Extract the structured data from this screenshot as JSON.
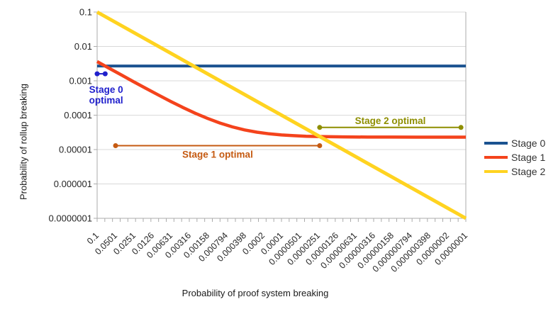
{
  "chart_data": {
    "type": "line",
    "title": "",
    "xlabel": "Probability of proof system breaking",
    "ylabel": "Probability of rollup breaking",
    "x_axis": {
      "scale": "log",
      "max": 0.1,
      "min": 1e-07,
      "tick_labels": [
        "0.1",
        "0.0501",
        "0.0251",
        "0.0126",
        "0.00631",
        "0.00316",
        "0.00158",
        "0.000794",
        "0.000398",
        "0.0002",
        "0.0001",
        "0.0000501",
        "0.0000251",
        "0.0000126",
        "0.00000631",
        "0.00000316",
        "0.00000158",
        "0.000000794",
        "0.000000398",
        "0.0000002",
        "0.0000001"
      ]
    },
    "y_axis": {
      "scale": "log",
      "max": 0.1,
      "min": 1e-07,
      "tick_labels": [
        "0.1",
        "0.01",
        "0.001",
        "0.0001",
        "0.00001",
        "0.000001",
        "0.0000001"
      ]
    },
    "series": [
      {
        "name": "Stage 0",
        "color": "#1B5390",
        "points": {
          "x": [
            0.1,
            1e-07
          ],
          "y": [
            0.0027,
            0.0027
          ]
        }
      },
      {
        "name": "Stage 1",
        "color": "#F4431C",
        "points": {
          "x": [
            0.1,
            0.0631,
            0.0398,
            0.0251,
            0.0158,
            0.01,
            0.00631,
            0.00398,
            0.00251,
            0.00158,
            0.001,
            0.000631,
            0.000398,
            0.000251,
            0.000158,
            0.0001,
            6.31e-05,
            3.98e-05,
            2.51e-05,
            1.58e-05,
            1e-05,
            3.98e-06,
            1.58e-06,
            6.3e-07,
            2.5e-07,
            1e-07
          ],
          "y": [
            0.00362,
            0.0023,
            0.00146,
            0.000927,
            0.000592,
            0.000383,
            0.00025,
            0.000166,
            0.000113,
            8e-05,
            5.9e-05,
            4.57e-05,
            3.73e-05,
            3.2e-05,
            2.87e-05,
            2.66e-05,
            2.53e-05,
            2.44e-05,
            2.39e-05,
            2.36e-05,
            2.34e-05,
            2.31e-05,
            2.31e-05,
            2.3e-05,
            2.3e-05,
            2.3e-05
          ]
        }
      },
      {
        "name": "Stage 2",
        "color": "#FFD320",
        "points": {
          "x": [
            0.1,
            1e-07
          ],
          "y": [
            0.1,
            1e-07
          ]
        }
      }
    ],
    "annotations": [
      {
        "label_lines": [
          "Stage 0",
          "optimal"
        ],
        "color": "#2020CC",
        "y": 0.0016,
        "x_start": 0.1,
        "x_end": 0.074
      },
      {
        "label_lines": [
          "Stage 1 optimal"
        ],
        "color": "#C55A11",
        "y": 1.3e-05,
        "x_start": 0.0501,
        "x_end": 2.39e-05
      },
      {
        "label_lines": [
          "Stage 2 optimal"
        ],
        "color": "#8E8E00",
        "y": 4.4e-05,
        "x_start": 2.39e-05,
        "x_end": 1.2e-07
      }
    ],
    "legend": {
      "position": "right",
      "entries": [
        "Stage 0",
        "Stage 1",
        "Stage 2"
      ]
    },
    "style": {
      "grid_color": "#D9D9D9",
      "axis_color": "#ABABAB",
      "tick_text_color": "#262626"
    }
  }
}
